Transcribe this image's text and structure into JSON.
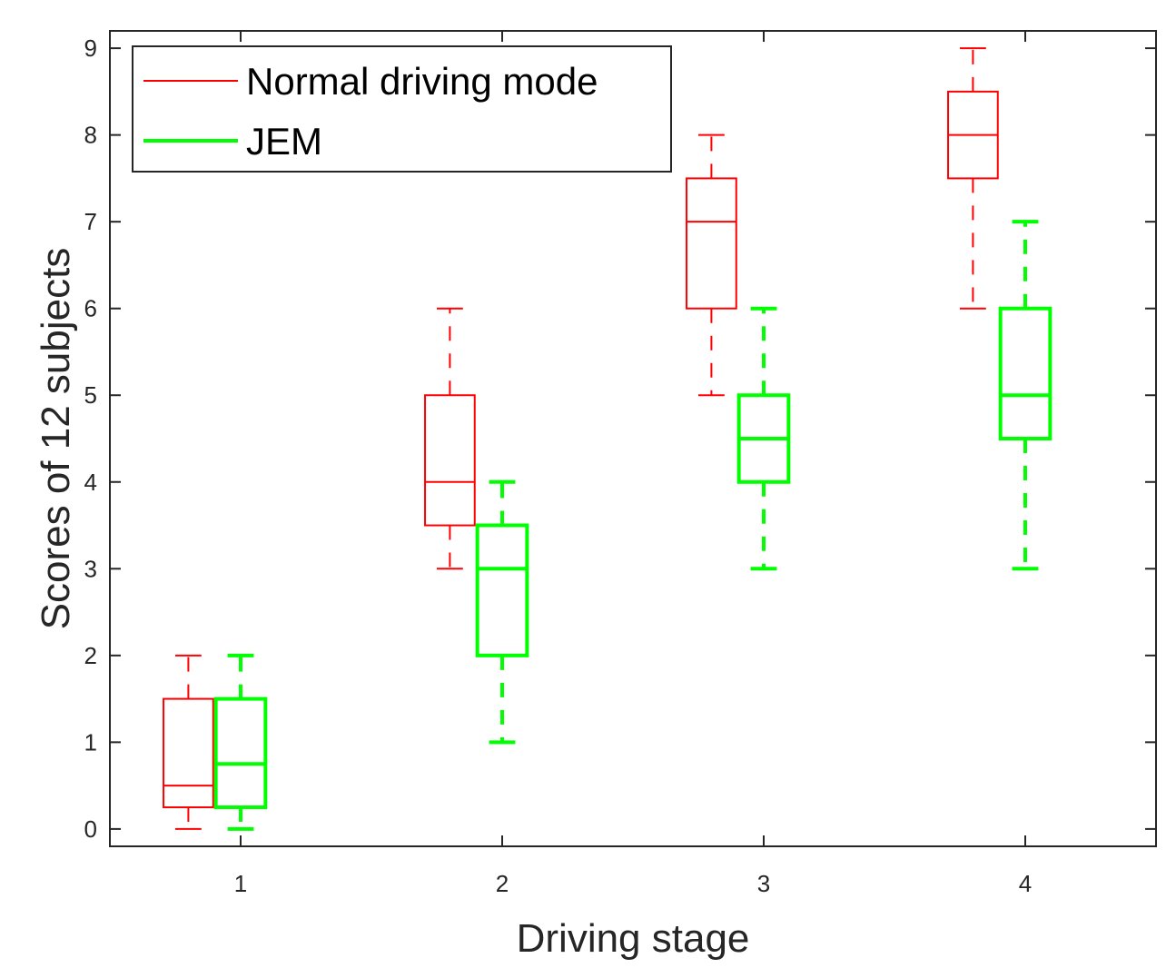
{
  "chart_data": {
    "type": "boxplot",
    "title": "",
    "xlabel": "Driving stage",
    "ylabel": "Scores of 12 subjects",
    "categories": [
      "1",
      "2",
      "3",
      "4"
    ],
    "xlim": [
      0.5,
      4.5
    ],
    "ylim": [
      -0.2,
      9.2
    ],
    "yticks": [
      0,
      1,
      2,
      3,
      4,
      5,
      6,
      7,
      8,
      9
    ],
    "grid": false,
    "legend_position": "top-left",
    "series": [
      {
        "name": "Normal driving mode",
        "color": "#ff0000",
        "line_style": "thin",
        "boxes": [
          {
            "min": 0,
            "q1": 0.25,
            "median": 0.5,
            "q3": 1.5,
            "max": 2
          },
          {
            "min": 3,
            "q1": 3.5,
            "median": 4,
            "q3": 5,
            "max": 6
          },
          {
            "min": 5,
            "q1": 6,
            "median": 7,
            "q3": 7.5,
            "max": 8
          },
          {
            "min": 6,
            "q1": 7.5,
            "median": 8,
            "q3": 8.5,
            "max": 9
          }
        ]
      },
      {
        "name": "JEM",
        "color": "#00ff00",
        "line_style": "thick",
        "boxes": [
          {
            "min": 0,
            "q1": 0.25,
            "median": 0.75,
            "q3": 1.5,
            "max": 2
          },
          {
            "min": 1,
            "q1": 2,
            "median": 3,
            "q3": 3.5,
            "max": 4
          },
          {
            "min": 3,
            "q1": 4,
            "median": 4.5,
            "q3": 5,
            "max": 6
          },
          {
            "min": 3,
            "q1": 4.5,
            "median": 5,
            "q3": 6,
            "max": 7
          }
        ]
      }
    ]
  }
}
